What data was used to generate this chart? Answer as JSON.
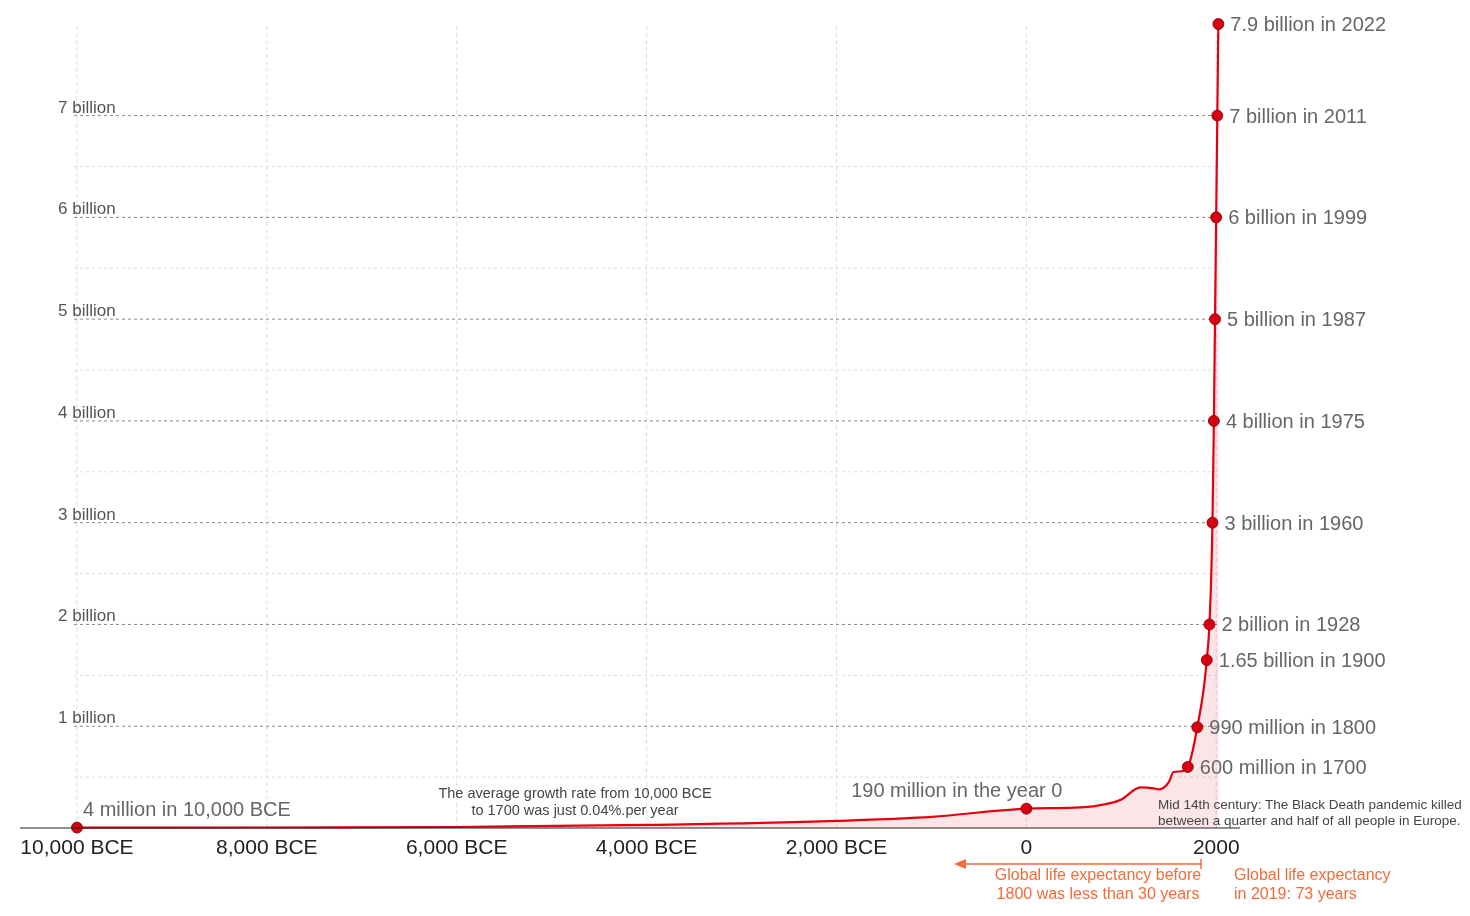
{
  "chart_data": {
    "type": "area",
    "xlim": [
      -10600,
      2250
    ],
    "ylim": [
      0,
      7.9
    ],
    "xticks": [
      {
        "value": -10000,
        "label": "10,000 BCE"
      },
      {
        "value": -8000,
        "label": "8,000 BCE"
      },
      {
        "value": -6000,
        "label": "6,000 BCE"
      },
      {
        "value": -4000,
        "label": "4,000 BCE"
      },
      {
        "value": -2000,
        "label": "2,000 BCE"
      },
      0,
      2000
    ],
    "yticks": [
      {
        "value": 0.5,
        "label": null
      },
      {
        "value": 1,
        "label": "1 billion"
      },
      {
        "value": 1.5,
        "label": null
      },
      {
        "value": 2,
        "label": "2 billion"
      },
      {
        "value": 2.5,
        "label": null
      },
      {
        "value": 3,
        "label": "3 billion"
      },
      {
        "value": 3.5,
        "label": null
      },
      {
        "value": 4,
        "label": "4 billion"
      },
      {
        "value": 4.5,
        "label": null
      },
      {
        "value": 5,
        "label": "5 billion"
      },
      {
        "value": 5.5,
        "label": null
      },
      {
        "value": 6,
        "label": "6 billion"
      },
      {
        "value": 6.5,
        "label": null
      },
      {
        "value": 7,
        "label": "7 billion"
      }
    ],
    "grid": true,
    "series": [
      {
        "color": "#e3000f",
        "marker": "none",
        "x": [
          -10000,
          -8000,
          -6000,
          -4000,
          -2000,
          -1000,
          0,
          500,
          750,
          1000,
          1200,
          1340,
          1400,
          1500,
          1550,
          1650,
          1700,
          1800,
          1900,
          1928,
          1960,
          1975,
          1987,
          1999,
          2011,
          2022
        ],
        "values": [
          0.004,
          0.005,
          0.01,
          0.03,
          0.07,
          0.11,
          0.19,
          0.2,
          0.22,
          0.28,
          0.4,
          0.39,
          0.38,
          0.45,
          0.55,
          0.56,
          0.6,
          0.99,
          1.65,
          2,
          3,
          4,
          5,
          6,
          7,
          7.9
        ]
      },
      {
        "type": "scatter",
        "color": "#d7000f",
        "marker": "circle",
        "x": [
          -10000,
          0,
          1700,
          1800,
          1900,
          1928,
          1960,
          1975,
          1987,
          1999,
          2011,
          2022
        ],
        "values": [
          0.004,
          0.19,
          0.6,
          0.99,
          1.65,
          2,
          3,
          4,
          5,
          6,
          7,
          7.9
        ]
      }
    ],
    "annotations": [
      {
        "text": "4 million in 10,000 BCE",
        "x": -10000,
        "y": 0.004
      },
      {
        "text": "190 million in the year 0",
        "x": 0,
        "y": 0.19
      },
      {
        "text": "600 million in 1700",
        "x": 1700,
        "y": 0.6
      },
      {
        "text": "990 million in 1800",
        "x": 1800,
        "y": 0.99
      },
      {
        "text": "1.65 billion in 1900",
        "x": 1900,
        "y": 1.65
      },
      {
        "text": "2 billion in 1928",
        "x": 1928,
        "y": 2
      },
      {
        "text": "3 billion in 1960",
        "x": 1960,
        "y": 3
      },
      {
        "text": "4 billion in 1975",
        "x": 1975,
        "y": 4
      },
      {
        "text": "5 billion in 1987",
        "x": 1987,
        "y": 5
      },
      {
        "text": "6 billion in 1999",
        "x": 1999,
        "y": 6
      },
      {
        "text": "7 billion in 2011",
        "x": 2011,
        "y": 7
      },
      {
        "text": "7.9 billion in 2022",
        "x": 2022,
        "y": 7.9
      },
      "The average growth rate from 10,000 BCE\nto 1700 was just 0.04%.per year",
      "Mid 14th century: The Black Death pandemic killed\nbetween a quarter and half of all people in Europe.",
      "Global life expectancy before\n1800 was less than 30 years",
      "Global life expectancy\nin 2019: 73 years"
    ]
  }
}
